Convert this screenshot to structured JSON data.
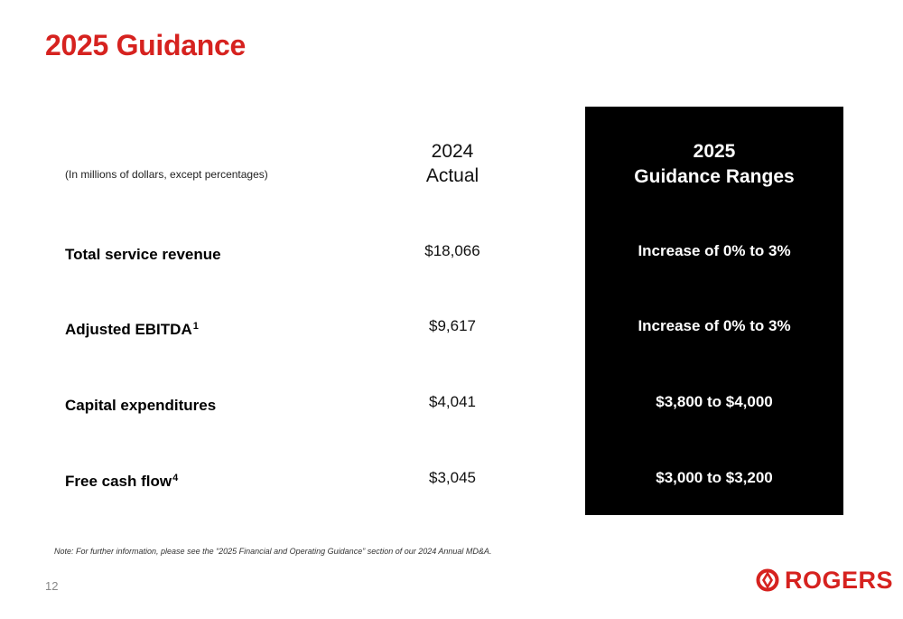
{
  "title": "2025 Guidance",
  "table": {
    "units_note": "(In millions of dollars, except percentages)",
    "col_2024": {
      "line1": "2024",
      "line2": "Actual"
    },
    "col_2025": {
      "line1": "2025",
      "line2": "Guidance Ranges"
    },
    "rows": [
      {
        "label": "Total service revenue",
        "superscript": "",
        "actual": "$18,066",
        "guidance": "Increase of 0% to 3%"
      },
      {
        "label": "Adjusted EBITDA",
        "superscript": "1",
        "actual": "$9,617",
        "guidance": "Increase of 0% to 3%"
      },
      {
        "label": "Capital expenditures",
        "superscript": "",
        "actual": "$4,041",
        "guidance": "$3,800 to $4,000"
      },
      {
        "label": "Free cash flow",
        "superscript": "4",
        "actual": "$3,045",
        "guidance": "$3,000 to $3,200"
      }
    ]
  },
  "footnote": "Note: For further information, please see the “2025 Financial and Operating Guidance” section of our 2024 Annual MD&A.",
  "page_number": "12",
  "logo": {
    "text": "ROGERS",
    "icon": "rogers-logo-icon"
  },
  "colors": {
    "brand_red": "#d6221f",
    "panel_black": "#000000",
    "text": "#000000"
  }
}
